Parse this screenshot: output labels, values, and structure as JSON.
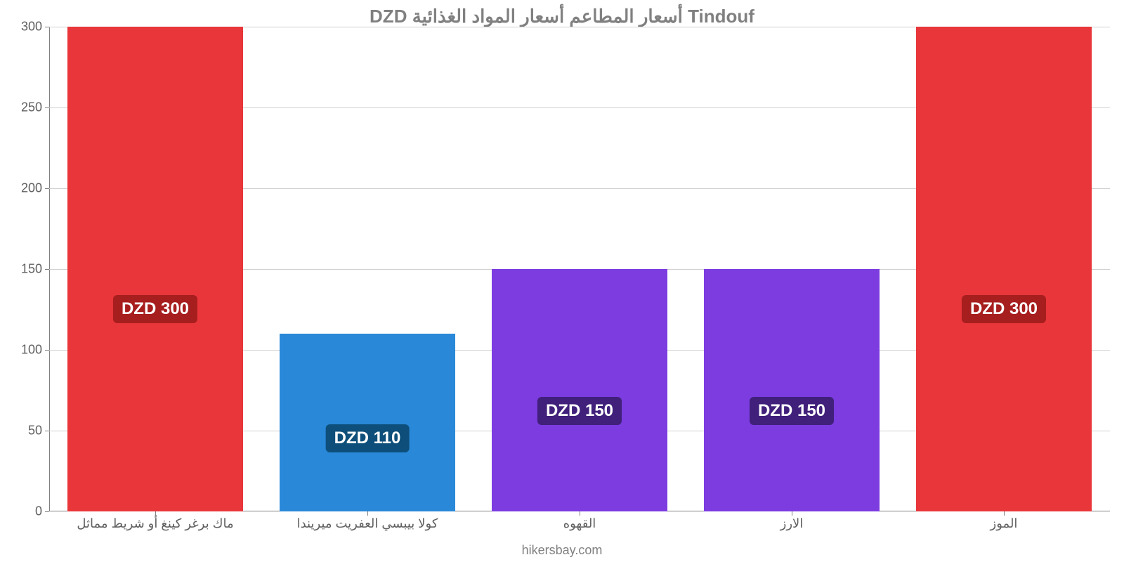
{
  "chart": {
    "type": "bar",
    "title": "DZD أسعار المطاعم أسعار المواد الغذائية Tindouf",
    "title_color": "#808080",
    "title_fontsize": 26,
    "background_color": "#ffffff",
    "bar_width_ratio": 0.83,
    "ylim": [
      0,
      300
    ],
    "yticks": [
      0,
      50,
      100,
      150,
      200,
      250,
      300
    ],
    "axis_color": "#808080",
    "grid_color": "#d0d0d0",
    "tick_color": "#606060",
    "tick_fontsize": 18,
    "categories": [
      "ماك برغر كينغ أو شريط مماثل",
      "كولا بيبسي العفريت ميريندا",
      "القهوه",
      "الارز",
      "الموز"
    ],
    "values": [
      300,
      110,
      150,
      150,
      300
    ],
    "bar_colors": [
      "#e8363a",
      "#2a88d8",
      "#7c3ce0",
      "#7c3ce0",
      "#e8363a"
    ],
    "value_labels": [
      "DZD 300",
      "DZD 110",
      "DZD 150",
      "DZD 150",
      "DZD 300"
    ],
    "badge_colors": [
      "#a71e1e",
      "#0d4f7a",
      "#40207a",
      "#40207a",
      "#a71e1e"
    ],
    "badge_fontsize": 24,
    "attribution": "hikersbay.com",
    "attribution_color": "#808080"
  }
}
